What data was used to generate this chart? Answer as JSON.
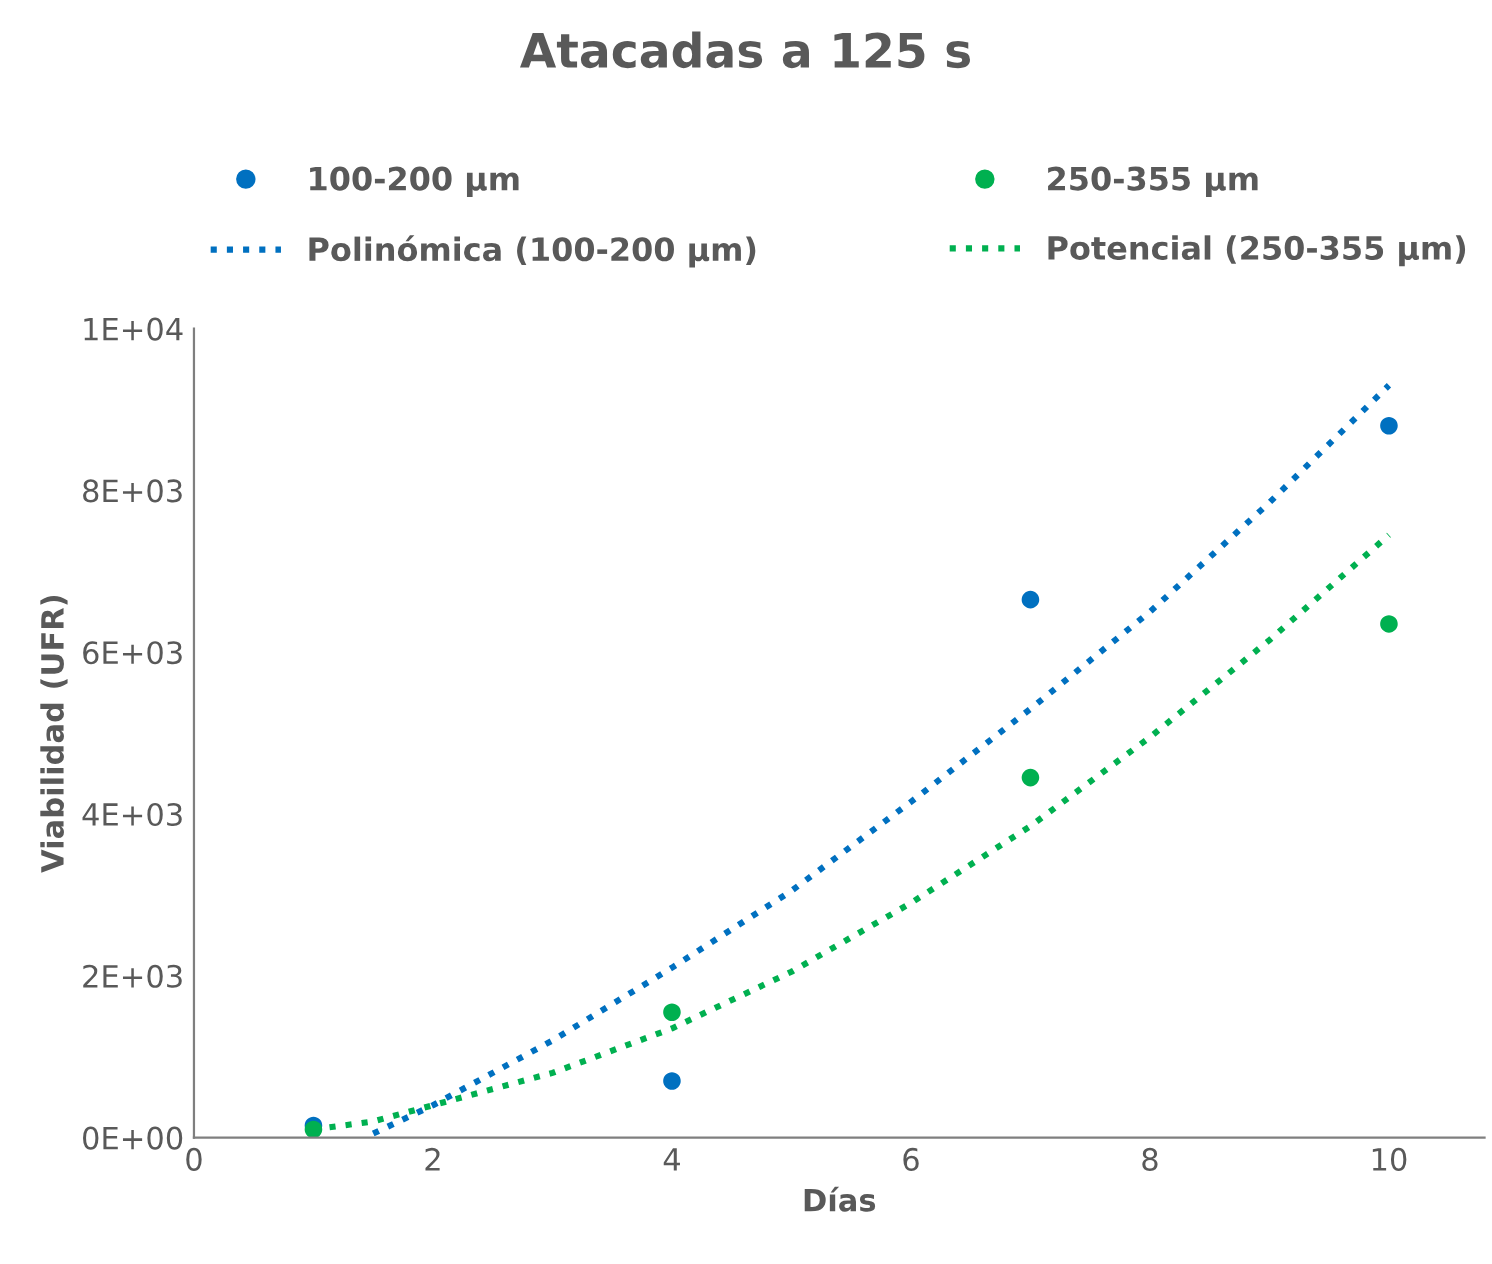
{
  "chart_data": {
    "type": "scatter",
    "title": "Atacadas a 125 s",
    "xlabel": "Días",
    "ylabel": "Viabilidad (UFR)",
    "xlim": [
      0,
      10.8
    ],
    "xticks": [
      0,
      2,
      4,
      6,
      8,
      10
    ],
    "ylim": [
      0,
      10000
    ],
    "yticks": [
      {
        "value": 0,
        "label": "0E+00"
      },
      {
        "value": 2000,
        "label": "2E+03"
      },
      {
        "value": 4000,
        "label": "4E+03"
      },
      {
        "value": 6000,
        "label": "6E+03"
      },
      {
        "value": 8000,
        "label": "8E+03"
      },
      {
        "value": 10000,
        "label": "1E+04"
      }
    ],
    "grid": false,
    "legend": "top",
    "series": [
      {
        "name": "100-200 µm",
        "marker": "circle",
        "color": "#0070c0",
        "x": [
          1,
          4,
          7,
          10
        ],
        "values": [
          150,
          700,
          6650,
          8800
        ]
      },
      {
        "name": "250-355 µm",
        "marker": "circle",
        "color": "#00b050",
        "x": [
          1,
          4,
          7,
          10
        ],
        "values": [
          100,
          1550,
          4450,
          6350
        ]
      },
      {
        "name": "Polinómica (100-200 µm)",
        "type": "line",
        "line_style": "dotted",
        "marker": "none",
        "color": "#0070c0",
        "x": [
          1.5,
          2,
          3,
          4,
          5,
          6,
          7,
          8,
          9,
          10
        ],
        "values": [
          50,
          400,
          1200,
          2100,
          3050,
          4150,
          5300,
          6500,
          7850,
          9300
        ]
      },
      {
        "name": "Potencial (250-355 µm)",
        "type": "line",
        "line_style": "dotted",
        "marker": "none",
        "color": "#00b050",
        "x": [
          1,
          1.5,
          2,
          3,
          4,
          5,
          6,
          7,
          8,
          9,
          10
        ],
        "values": [
          100,
          200,
          400,
          800,
          1350,
          2050,
          2900,
          3850,
          4950,
          6150,
          7450
        ]
      }
    ]
  }
}
